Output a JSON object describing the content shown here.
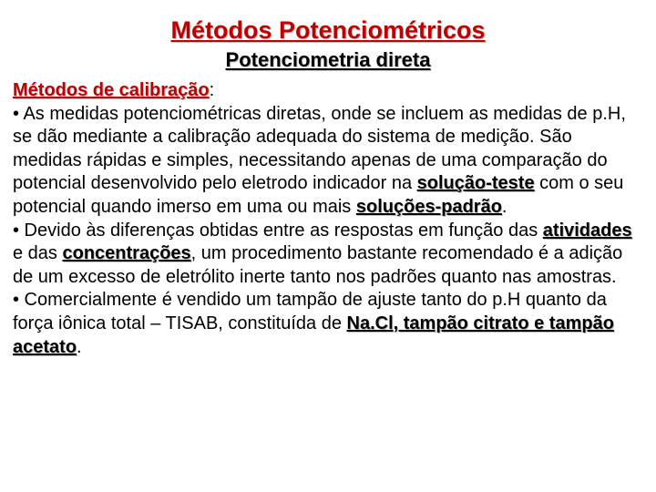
{
  "title": "Métodos Potenciométricos",
  "subtitle": "Potenciometria direta",
  "section_label": "Métodos de calibração",
  "colon": ":",
  "p1_a": "• As medidas potenciométricas diretas, onde se incluem as medidas de p.H, se dão mediante a calibração adequada do sistema de medição. São medidas rápidas e simples, necessitando apenas de uma comparação do potencial desenvolvido pelo eletrodo indicador na ",
  "hl_solucao_teste": "solução-teste",
  "p1_b": " com o seu potencial quando imerso em uma ou mais ",
  "hl_solucoes_padrao": "soluções-padrão",
  "p1_c": ".",
  "p2_a": "• Devido às diferenças obtidas entre as respostas em função das ",
  "hl_atividades": "atividades",
  "p2_b": " e das ",
  "hl_concentracoes": "concentrações",
  "p2_c": ", um procedimento bastante recomendado é a adição de um excesso de eletrólito inerte tanto nos padrões quanto nas amostras.",
  "p3_a": "• Comercialmente é vendido um tampão de ajuste tanto do p.H quanto da força iônica total – TISAB, constituída de ",
  "hl_nacl": "Na.Cl, tampão citrato e tampão acetato",
  "p3_b": "."
}
